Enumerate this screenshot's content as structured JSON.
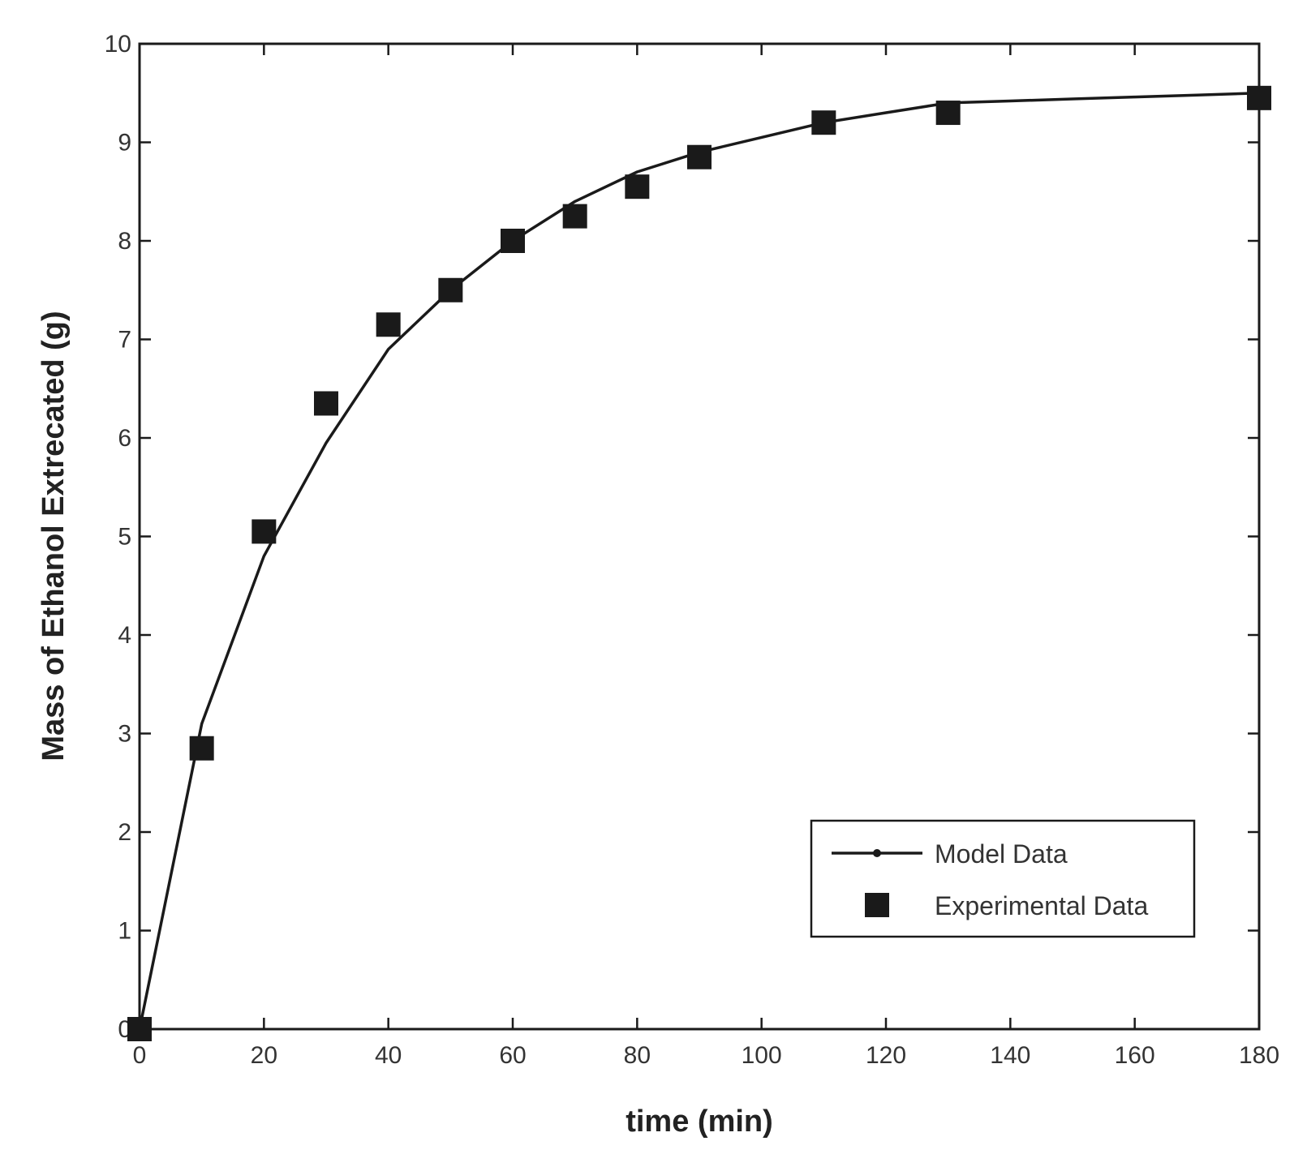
{
  "chart_data": {
    "type": "line",
    "xlabel": "time (min)",
    "ylabel": "Mass of Ethanol Extrecated (g)",
    "xlim": [
      0,
      180
    ],
    "ylim": [
      0,
      10
    ],
    "xticks": [
      0,
      20,
      40,
      60,
      80,
      100,
      120,
      140,
      160,
      180
    ],
    "yticks": [
      0,
      1,
      2,
      3,
      4,
      5,
      6,
      7,
      8,
      9,
      10
    ],
    "grid": false,
    "legend_position": "bottom-right",
    "series": [
      {
        "name": "Model Data",
        "style": "line",
        "color": "#1a1a1a",
        "x": [
          0,
          10,
          20,
          30,
          40,
          50,
          60,
          70,
          80,
          90,
          100,
          110,
          120,
          130,
          140,
          150,
          160,
          170,
          180
        ],
        "y": [
          0,
          3.1,
          4.8,
          5.95,
          6.9,
          7.5,
          8.0,
          8.4,
          8.7,
          8.9,
          9.05,
          9.2,
          9.3,
          9.4,
          9.42,
          9.44,
          9.46,
          9.48,
          9.5
        ]
      },
      {
        "name": "Experimental Data",
        "style": "square-marker",
        "color": "#1a1a1a",
        "x": [
          0,
          10,
          20,
          30,
          40,
          50,
          60,
          70,
          80,
          90,
          110,
          130,
          180
        ],
        "y": [
          0,
          2.85,
          5.05,
          6.35,
          7.15,
          7.5,
          8.0,
          8.25,
          8.55,
          8.85,
          9.2,
          9.3,
          9.45
        ]
      }
    ]
  }
}
